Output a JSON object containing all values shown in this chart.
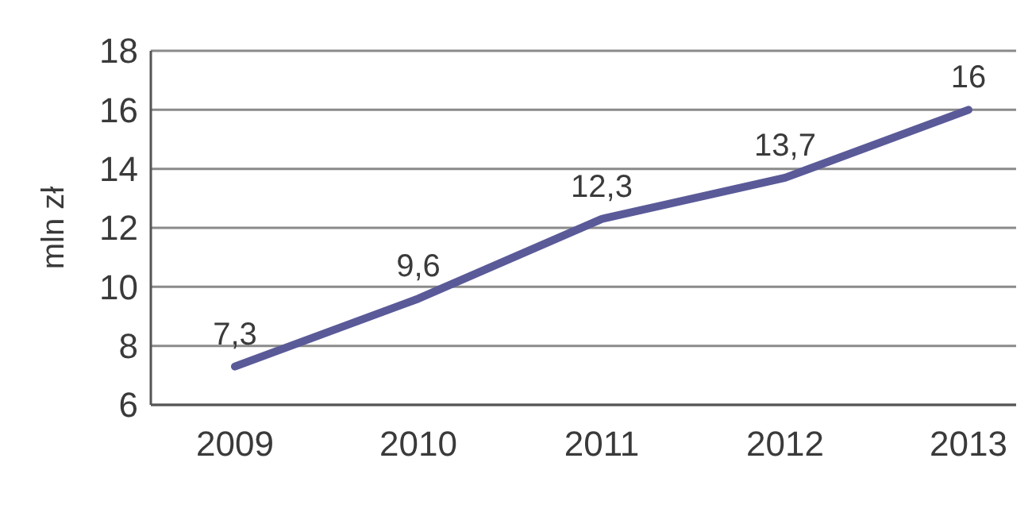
{
  "chart_data": {
    "type": "line",
    "ylabel": "mln zł",
    "categories": [
      "2009",
      "2010",
      "2011",
      "2012",
      "2013"
    ],
    "series": [
      {
        "color": "#5a5a99",
        "values": [
          7.3,
          9.6,
          12.3,
          13.7,
          16
        ],
        "value_labels": [
          "7,3",
          "9,6",
          "12,3",
          "13,7",
          "16"
        ]
      }
    ],
    "ylim": [
      6,
      18
    ],
    "yticks": [
      6,
      8,
      10,
      12,
      14,
      16,
      18
    ],
    "grid": "y",
    "marker": "none",
    "line_style": "solid"
  }
}
